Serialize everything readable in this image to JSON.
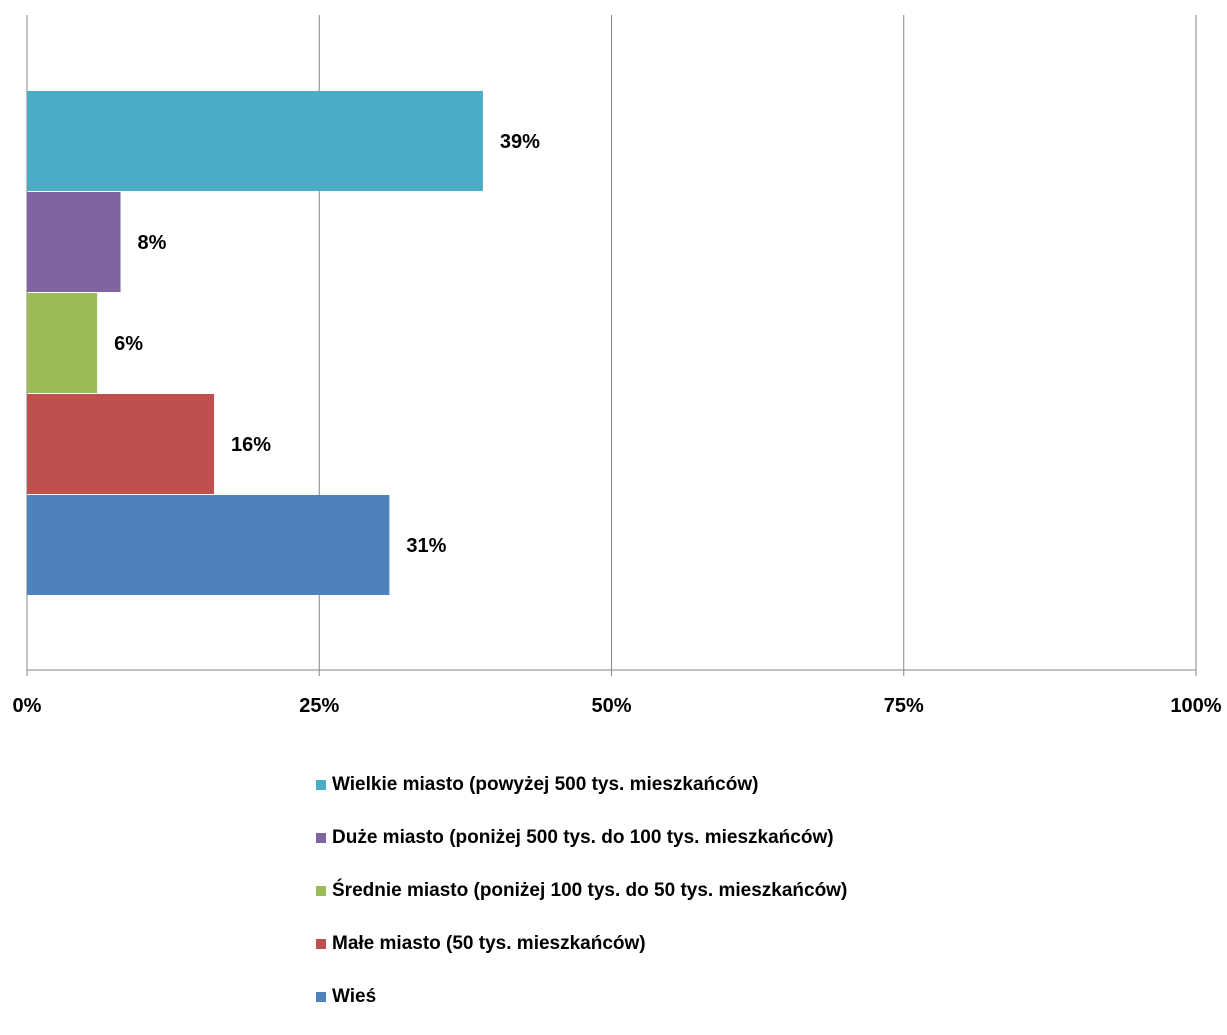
{
  "chart_data": {
    "type": "bar",
    "orientation": "horizontal",
    "x_ticks": [
      "0%",
      "25%",
      "50%",
      "75%",
      "100%"
    ],
    "xlim": [
      0,
      100
    ],
    "grid": true,
    "legend_position": "bottom",
    "series": [
      {
        "name": "Wielkie miasto (powyżej 500 tys. mieszkańców)",
        "value": 39,
        "label": "39%",
        "color": "#4BACC6"
      },
      {
        "name": "Duże miasto (poniżej 500 tys. do 100 tys. mieszkańców)",
        "value": 8,
        "label": "8%",
        "color": "#8064A2"
      },
      {
        "name": "Średnie miasto (poniżej 100 tys. do 50 tys. mieszkańców)",
        "value": 6,
        "label": "6%",
        "color": "#9BBB59"
      },
      {
        "name": "Małe miasto (50 tys. mieszkańców)",
        "value": 16,
        "label": "16%",
        "color": "#C0504D"
      },
      {
        "name": "Wieś",
        "value": 31,
        "label": "31%",
        "color": "#4F81BD"
      }
    ]
  }
}
